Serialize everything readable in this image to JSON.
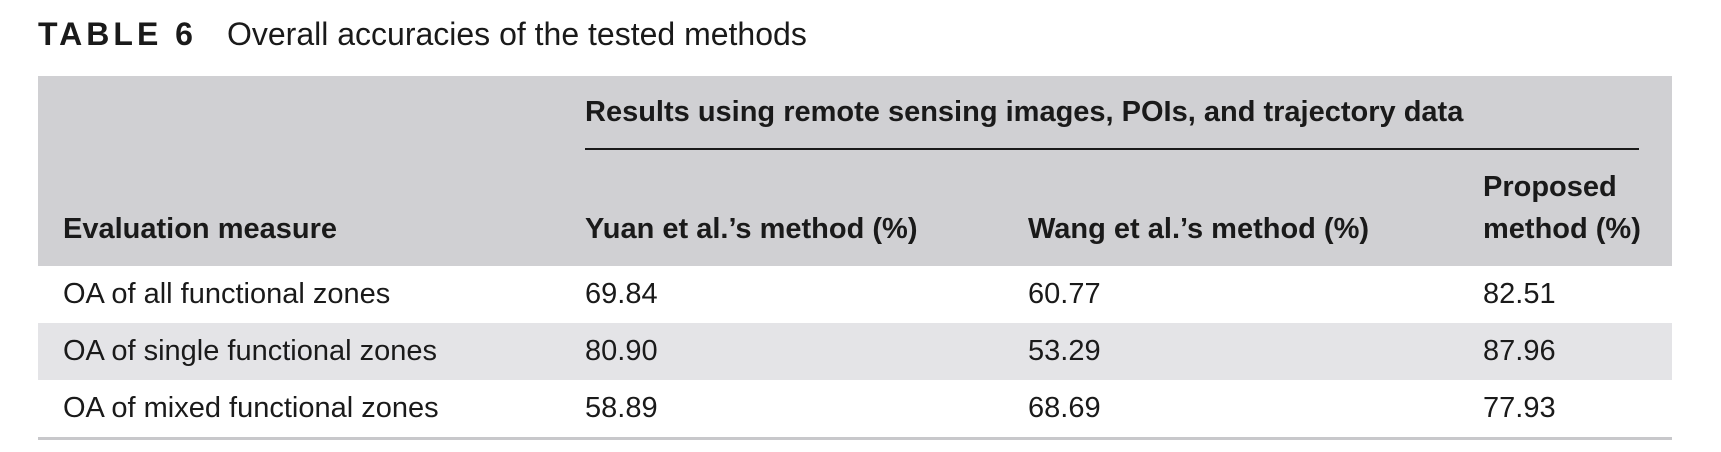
{
  "caption": {
    "label": "TABLE 6",
    "title": "Overall accuracies of the tested methods"
  },
  "table": {
    "group_header": "Results using remote sensing images, POIs, and trajectory data",
    "columns": {
      "measure": "Evaluation measure",
      "yuan": "Yuan et al.’s method (%)",
      "wang": "Wang et al.’s method (%)",
      "proposed_line1": "Proposed",
      "proposed_line2": "method (%)"
    },
    "rows": [
      {
        "measure": "OA of all functional zones",
        "yuan": "69.84",
        "wang": "60.77",
        "proposed": "82.51"
      },
      {
        "measure": "OA of single functional zones",
        "yuan": "80.90",
        "wang": "53.29",
        "proposed": "87.96"
      },
      {
        "measure": "OA of mixed functional zones",
        "yuan": "58.89",
        "wang": "68.69",
        "proposed": "77.93"
      }
    ]
  }
}
